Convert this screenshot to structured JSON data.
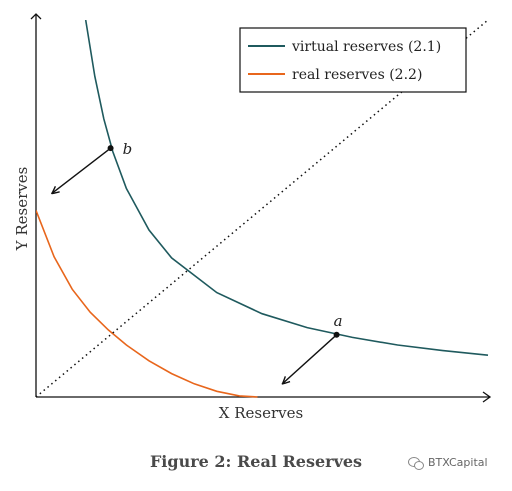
{
  "chart_data": {
    "type": "line",
    "title": "Figure 2: Real Reserves",
    "xlabel": "X Reserves",
    "ylabel": "Y Reserves",
    "xlim": [
      0,
      10
    ],
    "ylim": [
      0,
      10
    ],
    "legend_position": "top-right",
    "grid": false,
    "series": [
      {
        "name": "virtual reserves (2.1)",
        "color": "#1f5a5e",
        "x": [
          1.1,
          1.3,
          1.5,
          1.7,
          2.0,
          2.5,
          3.0,
          4.0,
          5.0,
          6.0,
          7.0,
          8.0,
          9.0,
          10.0
        ],
        "y": [
          10.0,
          8.51,
          7.38,
          6.51,
          5.53,
          4.43,
          3.69,
          2.77,
          2.21,
          1.84,
          1.58,
          1.38,
          1.23,
          1.11
        ]
      },
      {
        "name": "real reserves (2.2)",
        "color": "#e8661c",
        "x": [
          0.0,
          0.4,
          0.8,
          1.2,
          1.6,
          2.0,
          2.5,
          3.0,
          3.5,
          4.0,
          4.5,
          4.9
        ],
        "y": [
          4.95,
          3.72,
          2.86,
          2.25,
          1.78,
          1.38,
          0.96,
          0.62,
          0.35,
          0.15,
          0.03,
          0.0
        ]
      },
      {
        "name": "",
        "style": "dotted",
        "color": "#111111",
        "x": [
          0,
          10
        ],
        "y": [
          0,
          10
        ]
      }
    ],
    "points": [
      {
        "label": "b",
        "x": 1.65,
        "y": 6.6
      },
      {
        "label": "a",
        "x": 6.65,
        "y": 1.65
      }
    ],
    "arrows": [
      {
        "from": [
          1.65,
          6.6
        ],
        "to": [
          0.35,
          5.4
        ]
      },
      {
        "from": [
          6.65,
          1.65
        ],
        "to": [
          5.45,
          0.35
        ]
      }
    ]
  },
  "watermark": {
    "text": "BTXCapital"
  }
}
